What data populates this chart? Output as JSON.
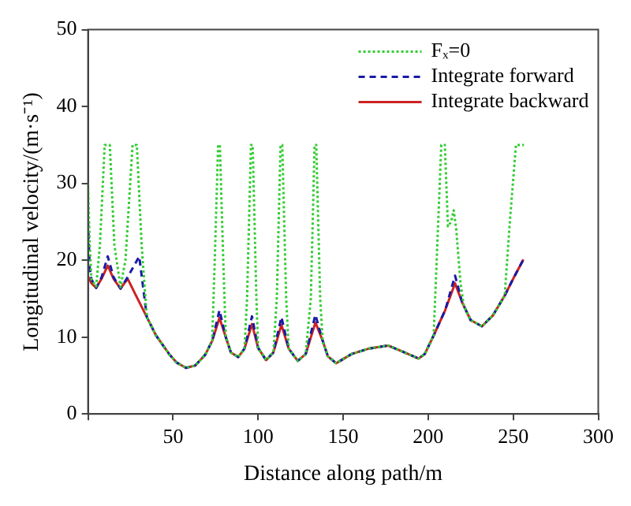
{
  "chart_data": {
    "type": "line",
    "xlabel": "Distance along path/m",
    "ylabel": "Longitudinal velocity/(m·s⁻¹)",
    "xlim": [
      0,
      300
    ],
    "xticks": [
      {
        "value": 0,
        "label": null
      },
      50,
      100,
      150,
      200,
      250,
      300
    ],
    "ylim": [
      0,
      50
    ],
    "yticks": [
      0,
      10,
      20,
      30,
      40,
      50
    ],
    "grid": false,
    "legend": "top right",
    "marker": "none",
    "series": [
      {
        "name": "Fₓ=0",
        "color": "#33cc33",
        "line_style": "dotted",
        "x": [
          0,
          1,
          2,
          4.8,
          7,
          9.8,
          12.8,
          15.5,
          19.1,
          22,
          26.2,
          28.7,
          31.5,
          34.6,
          40,
          48,
          52,
          57.6,
          63,
          68.9,
          73,
          74.5,
          76.5,
          77.5,
          79.5,
          81,
          84,
          88.3,
          92,
          93.5,
          95.8,
          96.8,
          99,
          100,
          104.7,
          109,
          111,
          113.2,
          114.2,
          116.5,
          118,
          123.3,
          128,
          131,
          133.2,
          134.2,
          136.5,
          138,
          141,
          145.9,
          155,
          165,
          176.4,
          185,
          194.3,
          198,
          203.2,
          205,
          207.7,
          209.8,
          211.6,
          213.5,
          215,
          216.5,
          219,
          221,
          225,
          231.6,
          238,
          245,
          248,
          251.6,
          256.3
        ],
        "values": [
          30,
          22,
          17.5,
          16.6,
          22,
          35,
          35,
          22,
          16.5,
          20,
          35,
          35,
          22,
          12.6,
          10.2,
          7.7,
          6.7,
          6,
          6.3,
          7.7,
          9.5,
          20,
          35,
          35,
          20,
          10,
          8,
          7.4,
          8.5,
          15,
          35,
          35,
          15,
          8.6,
          7,
          8,
          15,
          35,
          35,
          15,
          8.5,
          6.9,
          7.8,
          15,
          35,
          35,
          15,
          9.5,
          7.5,
          6.6,
          7.8,
          8.5,
          8.9,
          8.1,
          7.2,
          7.8,
          10.2,
          20,
          35,
          35,
          24.4,
          25,
          26.5,
          24,
          17,
          14,
          12.2,
          11.4,
          12.8,
          15.4,
          25,
          35,
          35
        ]
      },
      {
        "name": "Integrate forward",
        "color": "#1a1aa6",
        "line_style": "dashed",
        "x": [
          0,
          1,
          2,
          4.8,
          8,
          11.6,
          15,
          19.1,
          23.3,
          30.1,
          34.6,
          40,
          48,
          52,
          57.6,
          63,
          68.9,
          73,
          77.3,
          81,
          84,
          88.3,
          92,
          96.4,
          100,
          104.7,
          109,
          113.7,
          118,
          123.3,
          128,
          133.7,
          138,
          141,
          145.9,
          155,
          165,
          176.4,
          185,
          194.3,
          198,
          203.2,
          210,
          215.8,
          220,
          225,
          231.6,
          238,
          245,
          250,
          256
        ],
        "values": [
          25,
          19,
          17.5,
          16.4,
          17.8,
          20.5,
          17.8,
          16.3,
          17.8,
          20.5,
          12.6,
          10.2,
          7.7,
          6.7,
          6,
          6.3,
          7.7,
          9.5,
          13.5,
          10,
          8,
          7.4,
          8.5,
          12.7,
          8.6,
          7,
          8,
          12.6,
          8.5,
          6.9,
          7.8,
          12.9,
          9.5,
          7.5,
          6.6,
          7.8,
          8.5,
          8.9,
          8.1,
          7.2,
          7.8,
          10.2,
          13.5,
          18,
          14.5,
          12.2,
          11.4,
          12.8,
          15.4,
          17.6,
          20.1
        ]
      },
      {
        "name": "Integrate backward",
        "color": "#cc2222",
        "line_style": "solid",
        "x": [
          0,
          2,
          4.8,
          8,
          11.6,
          15,
          19.1,
          23.3,
          28,
          34.6,
          40,
          48,
          52,
          57.6,
          63,
          68.9,
          73,
          77.3,
          81,
          84,
          88.3,
          92,
          96.4,
          100,
          104.7,
          109,
          113.7,
          118,
          123.3,
          128,
          133.7,
          138,
          141,
          145.9,
          155,
          165,
          176.4,
          185,
          194.3,
          198,
          203.2,
          210,
          215.8,
          220,
          225,
          231.6,
          238,
          245,
          250,
          256
        ],
        "values": [
          17.9,
          17,
          16.4,
          17.6,
          19.3,
          17.6,
          16.3,
          17.6,
          15.5,
          12.6,
          10.2,
          7.7,
          6.7,
          6,
          6.3,
          7.7,
          9.5,
          12.5,
          10,
          8,
          7.4,
          8.5,
          11.7,
          8.6,
          7,
          8,
          11.6,
          8.5,
          6.9,
          7.8,
          11.9,
          9.5,
          7.5,
          6.6,
          7.8,
          8.5,
          8.9,
          8.1,
          7.2,
          7.8,
          10.2,
          13.5,
          17,
          14.5,
          12.2,
          11.4,
          12.8,
          15.4,
          17.6,
          20.1
        ]
      }
    ]
  }
}
